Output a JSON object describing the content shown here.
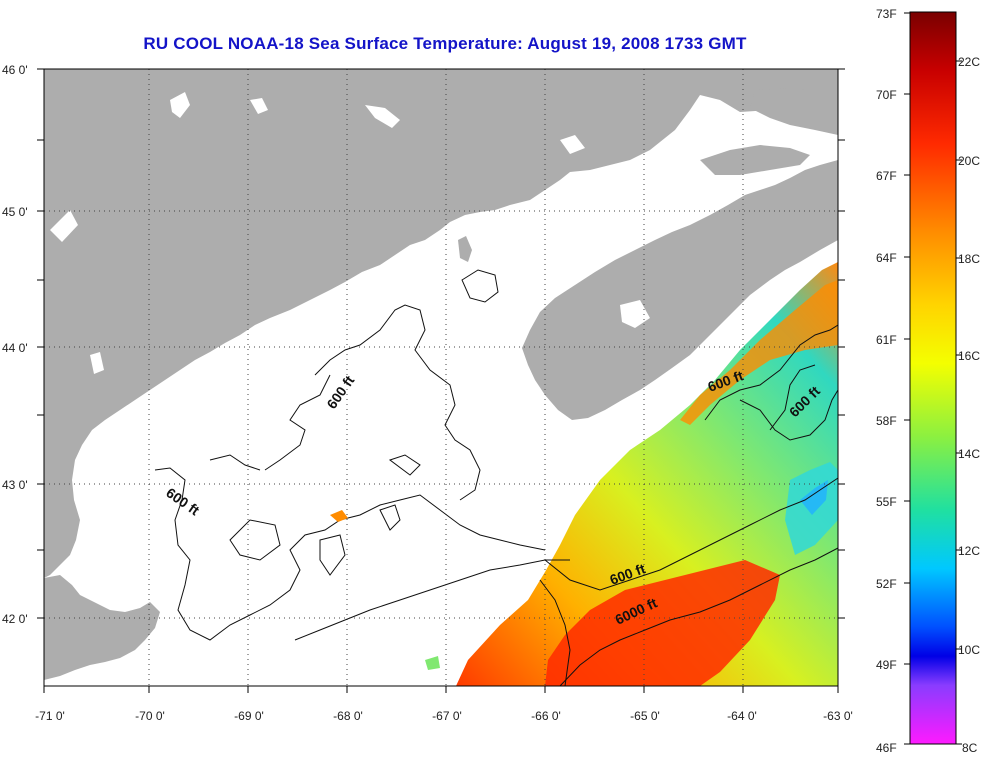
{
  "title": "RU COOL  NOAA-18  Sea Surface Temperature:  August 19, 2008 1733 GMT",
  "map": {
    "x_ticks": [
      "-71 0'",
      "-70 0'",
      "-69 0'",
      "-68 0'",
      "-67 0'",
      "-66 0'",
      "-65 0'",
      "-64 0'",
      "-63 0'"
    ],
    "y_ticks": [
      "46 0'",
      "45 0'",
      "44 0'",
      "43 0'",
      "42 0'"
    ],
    "contour_labels": [
      "600 ft",
      "600 ft",
      "600 ft",
      "600 ft",
      "600 ft",
      "6000 ft"
    ],
    "colors": {
      "land": "#adadad",
      "water": "#ffffff",
      "title": "#1414c8"
    }
  },
  "colorbar": {
    "fahrenheit": [
      "73F",
      "70F",
      "67F",
      "64F",
      "61F",
      "58F",
      "55F",
      "52F",
      "49F",
      "46F"
    ],
    "celsius": [
      "22C",
      "20C",
      "18C",
      "16C",
      "14C",
      "12C",
      "10C",
      "8C"
    ]
  }
}
